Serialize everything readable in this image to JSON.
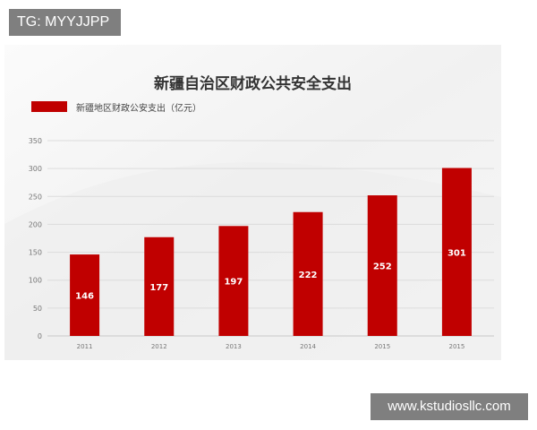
{
  "tag_badge": "TG: MYYJJPP",
  "watermark": "www.kstudiosllc.com",
  "colors": {
    "bar": "#c00000",
    "badge_bg": "#7f7f7f",
    "badge_text": "#ffffff",
    "grid": "#dcdcdc",
    "axis_text": "#777777",
    "panel_bg": "#f3f3f3"
  },
  "chart_data": {
    "type": "bar",
    "title": "新疆自治区财政公共安全支出",
    "xlabel": "",
    "ylabel": "",
    "legend": "新疆地区财政公安支出（亿元）",
    "legend_position": "top-left",
    "grid": true,
    "ylim": [
      0,
      350
    ],
    "yticks": [
      0,
      50,
      100,
      150,
      200,
      250,
      300,
      350
    ],
    "categories": [
      "2011",
      "2012",
      "2013",
      "2014",
      "2015",
      "2015"
    ],
    "values": [
      146,
      177,
      197,
      222,
      252,
      301
    ],
    "data_labels": [
      "146",
      "177",
      "197",
      "222",
      "252",
      "301"
    ]
  }
}
